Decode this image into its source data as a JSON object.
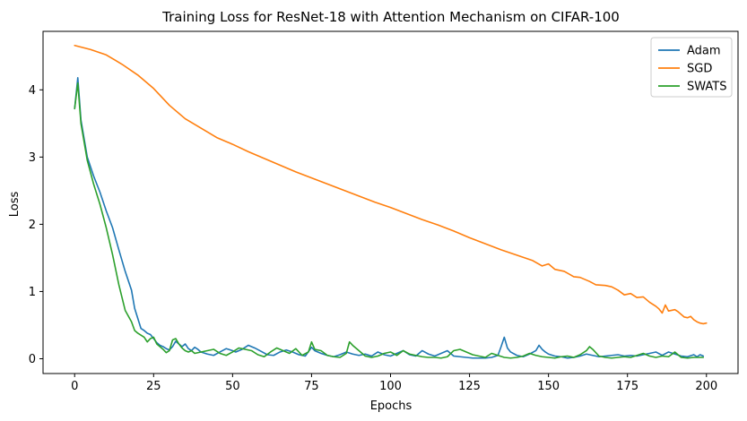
{
  "chart_data": {
    "type": "line",
    "title": "Training Loss for ResNet-18 with Attention Mechanism on CIFAR-100",
    "xlabel": "Epochs",
    "ylabel": "Loss",
    "xlim": [
      -10,
      210
    ],
    "ylim": [
      -0.22,
      4.87
    ],
    "xticks": [
      0,
      25,
      50,
      75,
      100,
      125,
      150,
      175,
      200
    ],
    "yticks": [
      0,
      1,
      2,
      3,
      4
    ],
    "grid": false,
    "legend": "top-right",
    "series": [
      {
        "name": "Adam",
        "color": "#1f77b4",
        "points": [
          [
            0,
            3.72
          ],
          [
            1,
            4.18
          ],
          [
            2,
            3.55
          ],
          [
            4,
            3.0
          ],
          [
            6,
            2.72
          ],
          [
            8,
            2.48
          ],
          [
            10,
            2.2
          ],
          [
            12,
            1.95
          ],
          [
            14,
            1.62
          ],
          [
            16,
            1.3
          ],
          [
            18,
            1.02
          ],
          [
            19,
            0.75
          ],
          [
            20,
            0.6
          ],
          [
            21,
            0.45
          ],
          [
            22,
            0.42
          ],
          [
            23,
            0.38
          ],
          [
            24,
            0.36
          ],
          [
            25,
            0.3
          ],
          [
            26,
            0.24
          ],
          [
            27,
            0.2
          ],
          [
            28,
            0.18
          ],
          [
            29,
            0.15
          ],
          [
            30,
            0.13
          ],
          [
            31,
            0.18
          ],
          [
            32,
            0.26
          ],
          [
            33,
            0.22
          ],
          [
            34,
            0.18
          ],
          [
            35,
            0.22
          ],
          [
            36,
            0.15
          ],
          [
            37,
            0.12
          ],
          [
            38,
            0.17
          ],
          [
            39,
            0.14
          ],
          [
            40,
            0.1
          ],
          [
            42,
            0.07
          ],
          [
            44,
            0.05
          ],
          [
            46,
            0.1
          ],
          [
            48,
            0.15
          ],
          [
            50,
            0.12
          ],
          [
            51,
            0.1
          ],
          [
            53,
            0.14
          ],
          [
            55,
            0.2
          ],
          [
            57,
            0.16
          ],
          [
            59,
            0.11
          ],
          [
            61,
            0.06
          ],
          [
            63,
            0.05
          ],
          [
            65,
            0.1
          ],
          [
            67,
            0.13
          ],
          [
            69,
            0.1
          ],
          [
            71,
            0.06
          ],
          [
            73,
            0.04
          ],
          [
            75,
            0.17
          ],
          [
            76,
            0.12
          ],
          [
            78,
            0.08
          ],
          [
            80,
            0.05
          ],
          [
            82,
            0.03
          ],
          [
            84,
            0.06
          ],
          [
            86,
            0.1
          ],
          [
            88,
            0.07
          ],
          [
            90,
            0.05
          ],
          [
            92,
            0.07
          ],
          [
            94,
            0.04
          ],
          [
            96,
            0.1
          ],
          [
            98,
            0.06
          ],
          [
            100,
            0.04
          ],
          [
            102,
            0.08
          ],
          [
            104,
            0.12
          ],
          [
            106,
            0.06
          ],
          [
            108,
            0.04
          ],
          [
            110,
            0.12
          ],
          [
            112,
            0.07
          ],
          [
            114,
            0.04
          ],
          [
            116,
            0.08
          ],
          [
            118,
            0.12
          ],
          [
            120,
            0.04
          ],
          [
            122,
            0.03
          ],
          [
            124,
            0.02
          ],
          [
            126,
            0.01
          ],
          [
            128,
            0.01
          ],
          [
            130,
            0.01
          ],
          [
            132,
            0.02
          ],
          [
            134,
            0.05
          ],
          [
            135,
            0.18
          ],
          [
            136,
            0.32
          ],
          [
            137,
            0.16
          ],
          [
            138,
            0.1
          ],
          [
            140,
            0.05
          ],
          [
            142,
            0.03
          ],
          [
            144,
            0.07
          ],
          [
            146,
            0.12
          ],
          [
            147,
            0.2
          ],
          [
            148,
            0.14
          ],
          [
            149,
            0.1
          ],
          [
            150,
            0.07
          ],
          [
            152,
            0.04
          ],
          [
            154,
            0.03
          ],
          [
            156,
            0.01
          ],
          [
            158,
            0.02
          ],
          [
            160,
            0.04
          ],
          [
            162,
            0.07
          ],
          [
            164,
            0.05
          ],
          [
            166,
            0.03
          ],
          [
            168,
            0.04
          ],
          [
            170,
            0.05
          ],
          [
            172,
            0.06
          ],
          [
            174,
            0.04
          ],
          [
            176,
            0.05
          ],
          [
            178,
            0.04
          ],
          [
            180,
            0.06
          ],
          [
            182,
            0.08
          ],
          [
            184,
            0.1
          ],
          [
            186,
            0.05
          ],
          [
            188,
            0.1
          ],
          [
            190,
            0.07
          ],
          [
            192,
            0.04
          ],
          [
            194,
            0.03
          ],
          [
            196,
            0.06
          ],
          [
            197,
            0.03
          ],
          [
            198,
            0.06
          ],
          [
            199,
            0.04
          ]
        ]
      },
      {
        "name": "SGD",
        "color": "#ff7f0e",
        "points": [
          [
            0,
            4.66
          ],
          [
            5,
            4.6
          ],
          [
            10,
            4.52
          ],
          [
            15,
            4.38
          ],
          [
            20,
            4.22
          ],
          [
            25,
            4.02
          ],
          [
            30,
            3.77
          ],
          [
            35,
            3.57
          ],
          [
            40,
            3.43
          ],
          [
            45,
            3.29
          ],
          [
            50,
            3.19
          ],
          [
            55,
            3.08
          ],
          [
            60,
            2.98
          ],
          [
            65,
            2.88
          ],
          [
            70,
            2.78
          ],
          [
            75,
            2.69
          ],
          [
            80,
            2.6
          ],
          [
            85,
            2.51
          ],
          [
            90,
            2.42
          ],
          [
            95,
            2.33
          ],
          [
            100,
            2.25
          ],
          [
            105,
            2.16
          ],
          [
            110,
            2.07
          ],
          [
            115,
            1.99
          ],
          [
            120,
            1.9
          ],
          [
            125,
            1.8
          ],
          [
            130,
            1.71
          ],
          [
            135,
            1.62
          ],
          [
            140,
            1.54
          ],
          [
            145,
            1.46
          ],
          [
            148,
            1.38
          ],
          [
            150,
            1.41
          ],
          [
            152,
            1.33
          ],
          [
            155,
            1.3
          ],
          [
            158,
            1.22
          ],
          [
            160,
            1.21
          ],
          [
            163,
            1.15
          ],
          [
            165,
            1.1
          ],
          [
            168,
            1.09
          ],
          [
            170,
            1.07
          ],
          [
            172,
            1.02
          ],
          [
            174,
            0.95
          ],
          [
            176,
            0.97
          ],
          [
            178,
            0.91
          ],
          [
            180,
            0.92
          ],
          [
            182,
            0.84
          ],
          [
            184,
            0.78
          ],
          [
            185,
            0.74
          ],
          [
            186,
            0.68
          ],
          [
            187,
            0.8
          ],
          [
            188,
            0.71
          ],
          [
            190,
            0.73
          ],
          [
            191,
            0.7
          ],
          [
            192,
            0.66
          ],
          [
            193,
            0.62
          ],
          [
            194,
            0.61
          ],
          [
            195,
            0.63
          ],
          [
            196,
            0.58
          ],
          [
            197,
            0.55
          ],
          [
            198,
            0.53
          ],
          [
            199,
            0.52
          ],
          [
            200,
            0.53
          ]
        ]
      },
      {
        "name": "SWATS",
        "color": "#2ca02c",
        "points": [
          [
            0,
            3.72
          ],
          [
            1,
            4.1
          ],
          [
            2,
            3.5
          ],
          [
            4,
            2.95
          ],
          [
            6,
            2.6
          ],
          [
            8,
            2.3
          ],
          [
            10,
            1.95
          ],
          [
            12,
            1.55
          ],
          [
            14,
            1.1
          ],
          [
            16,
            0.72
          ],
          [
            18,
            0.55
          ],
          [
            19,
            0.42
          ],
          [
            20,
            0.38
          ],
          [
            21,
            0.35
          ],
          [
            22,
            0.32
          ],
          [
            23,
            0.25
          ],
          [
            24,
            0.3
          ],
          [
            25,
            0.32
          ],
          [
            26,
            0.22
          ],
          [
            27,
            0.18
          ],
          [
            28,
            0.14
          ],
          [
            29,
            0.09
          ],
          [
            30,
            0.12
          ],
          [
            31,
            0.28
          ],
          [
            32,
            0.3
          ],
          [
            33,
            0.22
          ],
          [
            34,
            0.16
          ],
          [
            35,
            0.12
          ],
          [
            36,
            0.1
          ],
          [
            37,
            0.12
          ],
          [
            38,
            0.08
          ],
          [
            40,
            0.1
          ],
          [
            42,
            0.12
          ],
          [
            44,
            0.14
          ],
          [
            46,
            0.08
          ],
          [
            48,
            0.05
          ],
          [
            50,
            0.1
          ],
          [
            52,
            0.16
          ],
          [
            54,
            0.14
          ],
          [
            56,
            0.12
          ],
          [
            58,
            0.06
          ],
          [
            60,
            0.03
          ],
          [
            62,
            0.1
          ],
          [
            64,
            0.16
          ],
          [
            66,
            0.12
          ],
          [
            68,
            0.08
          ],
          [
            70,
            0.15
          ],
          [
            72,
            0.05
          ],
          [
            74,
            0.1
          ],
          [
            75,
            0.25
          ],
          [
            76,
            0.14
          ],
          [
            78,
            0.12
          ],
          [
            80,
            0.05
          ],
          [
            82,
            0.03
          ],
          [
            84,
            0.02
          ],
          [
            86,
            0.08
          ],
          [
            87,
            0.25
          ],
          [
            88,
            0.2
          ],
          [
            90,
            0.12
          ],
          [
            92,
            0.04
          ],
          [
            94,
            0.02
          ],
          [
            96,
            0.04
          ],
          [
            98,
            0.08
          ],
          [
            100,
            0.1
          ],
          [
            102,
            0.05
          ],
          [
            104,
            0.12
          ],
          [
            106,
            0.07
          ],
          [
            108,
            0.05
          ],
          [
            110,
            0.03
          ],
          [
            112,
            0.02
          ],
          [
            114,
            0.02
          ],
          [
            116,
            0.01
          ],
          [
            118,
            0.03
          ],
          [
            120,
            0.12
          ],
          [
            122,
            0.14
          ],
          [
            124,
            0.1
          ],
          [
            126,
            0.06
          ],
          [
            128,
            0.04
          ],
          [
            130,
            0.02
          ],
          [
            132,
            0.08
          ],
          [
            134,
            0.05
          ],
          [
            136,
            0.02
          ],
          [
            138,
            0.01
          ],
          [
            140,
            0.02
          ],
          [
            142,
            0.04
          ],
          [
            144,
            0.08
          ],
          [
            146,
            0.05
          ],
          [
            148,
            0.03
          ],
          [
            150,
            0.02
          ],
          [
            152,
            0.01
          ],
          [
            154,
            0.03
          ],
          [
            156,
            0.04
          ],
          [
            158,
            0.02
          ],
          [
            160,
            0.06
          ],
          [
            162,
            0.12
          ],
          [
            163,
            0.18
          ],
          [
            164,
            0.14
          ],
          [
            166,
            0.04
          ],
          [
            168,
            0.02
          ],
          [
            170,
            0.01
          ],
          [
            172,
            0.02
          ],
          [
            174,
            0.03
          ],
          [
            176,
            0.02
          ],
          [
            178,
            0.05
          ],
          [
            180,
            0.08
          ],
          [
            182,
            0.04
          ],
          [
            184,
            0.02
          ],
          [
            186,
            0.04
          ],
          [
            188,
            0.03
          ],
          [
            190,
            0.1
          ],
          [
            192,
            0.02
          ],
          [
            194,
            0.01
          ],
          [
            196,
            0.02
          ],
          [
            198,
            0.02
          ],
          [
            199,
            0.02
          ]
        ]
      }
    ]
  }
}
